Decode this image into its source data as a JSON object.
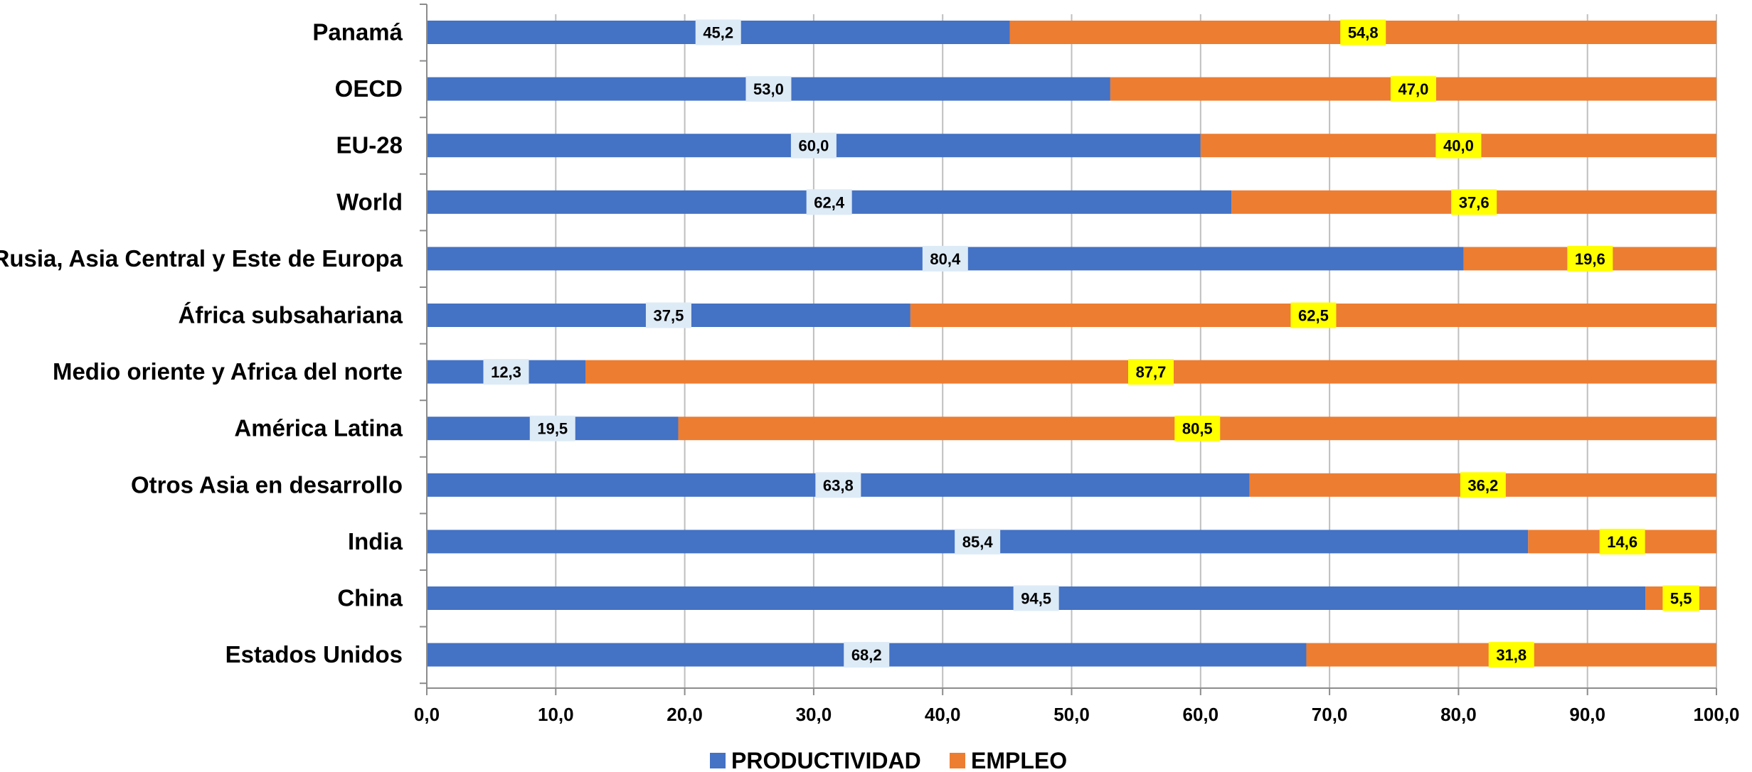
{
  "chart_data": {
    "type": "bar",
    "orientation": "horizontal",
    "stacked": true,
    "categories": [
      "Panamá",
      "OECD",
      "EU-28",
      "World",
      "Rusia, Asia Central y Este de Europa",
      "África subsahariana",
      "Medio oriente y Africa del norte",
      "América Latina",
      "Otros Asia en desarrollo",
      "India",
      "China",
      "Estados Unidos"
    ],
    "series": [
      {
        "name": "PRODUCTIVIDAD",
        "color": "#4472C4",
        "label_bg": "#DDEBF7",
        "values": [
          45.2,
          53.0,
          60.0,
          62.4,
          80.4,
          37.5,
          12.3,
          19.5,
          63.8,
          85.4,
          94.5,
          68.2
        ],
        "labels": [
          "45,2",
          "53,0",
          "60,0",
          "62,4",
          "80,4",
          "37,5",
          "12,3",
          "19,5",
          "63,8",
          "85,4",
          "94,5",
          "68,2"
        ]
      },
      {
        "name": "EMPLEO",
        "color": "#ED7D31",
        "label_bg": "#FFFF00",
        "values": [
          54.8,
          47.0,
          40.0,
          37.6,
          19.6,
          62.5,
          87.7,
          80.5,
          36.2,
          14.6,
          5.5,
          31.8
        ],
        "labels": [
          "54,8",
          "47,0",
          "40,0",
          "37,6",
          "19,6",
          "62,5",
          "87,7",
          "80,5",
          "36,2",
          "14,6",
          "5,5",
          "31,8"
        ]
      }
    ],
    "xlim": [
      0,
      100
    ],
    "xticks": [
      0,
      10,
      20,
      30,
      40,
      50,
      60,
      70,
      80,
      90,
      100
    ],
    "xtick_labels": [
      "0,0",
      "10,0",
      "20,0",
      "30,0",
      "40,0",
      "50,0",
      "60,0",
      "70,0",
      "80,0",
      "90,0",
      "100,0"
    ],
    "title": "",
    "xlabel": "",
    "ylabel": "",
    "grid": "vertical",
    "gridline_color": "#BFBFBF",
    "legend": {
      "position": "bottom"
    }
  }
}
